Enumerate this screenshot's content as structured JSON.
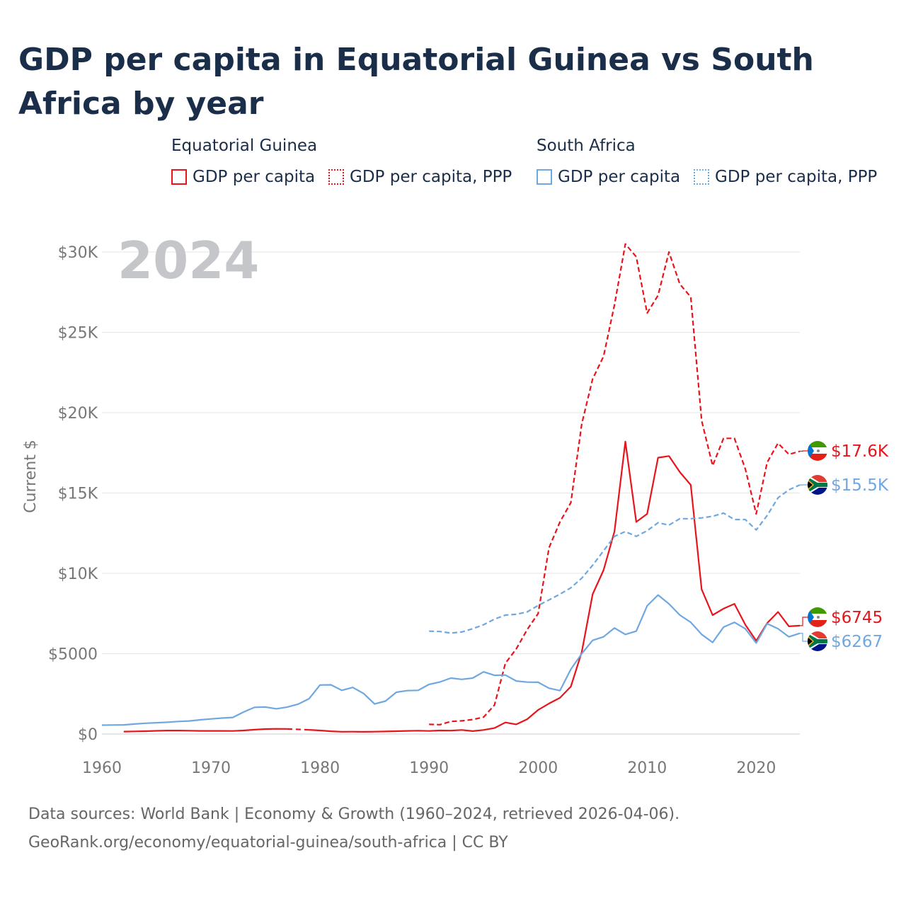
{
  "title": "GDP per capita in Equatorial Guinea vs South Africa by year",
  "legend": {
    "groups": [
      {
        "name": "Equatorial Guinea",
        "items": [
          "GDP per capita",
          "GDP per capita, PPP"
        ]
      },
      {
        "name": "South Africa",
        "items": [
          "GDP per capita",
          "GDP per capita, PPP"
        ]
      }
    ]
  },
  "colors": {
    "gq": "#e8141c",
    "za": "#6fa8e0",
    "title": "#1a2e4a",
    "year_label": "#c4c6c9",
    "grid": "#e6e6e6"
  },
  "chart_data": {
    "type": "line",
    "title": "GDP per capita in Equatorial Guinea vs South Africa by year",
    "xlabel": "",
    "ylabel": "Current $",
    "xlim": [
      1960,
      2024
    ],
    "ylim": [
      0,
      30000
    ],
    "x_ticks": [
      1960,
      1970,
      1980,
      1990,
      2000,
      2010,
      2020
    ],
    "x_tick_labels": [
      "1960",
      "1970",
      "1980",
      "1990",
      "2000",
      "2010",
      "2020"
    ],
    "y_ticks": [
      0,
      5000,
      10000,
      15000,
      20000,
      25000,
      30000
    ],
    "y_tick_labels": [
      "$0",
      "$5000",
      "$10K",
      "$15K",
      "$20K",
      "$25K",
      "$30K"
    ],
    "year_label": "2024",
    "end_labels": {
      "gq_gdp": "$6745",
      "gq_ppp": "$17.6K",
      "za_gdp": "$6267",
      "za_ppp": "$15.5K"
    },
    "series": [
      {
        "name": "Equatorial Guinea GDP per capita",
        "country": "gq",
        "style": "solid",
        "points": [
          [
            1962,
            150
          ],
          [
            1963,
            165
          ],
          [
            1964,
            175
          ],
          [
            1965,
            200
          ],
          [
            1966,
            215
          ],
          [
            1967,
            215
          ],
          [
            1968,
            205
          ],
          [
            1969,
            195
          ],
          [
            1970,
            195
          ],
          [
            1971,
            195
          ],
          [
            1972,
            190
          ],
          [
            1973,
            220
          ],
          [
            1974,
            270
          ],
          [
            1975,
            310
          ],
          [
            1976,
            320
          ],
          [
            1977,
            315
          ],
          [
            1978,
            null
          ],
          [
            1979,
            260
          ],
          [
            1980,
            220
          ],
          [
            1981,
            170
          ],
          [
            1982,
            140
          ],
          [
            1983,
            145
          ],
          [
            1984,
            135
          ],
          [
            1985,
            145
          ],
          [
            1986,
            160
          ],
          [
            1987,
            175
          ],
          [
            1988,
            195
          ],
          [
            1989,
            205
          ],
          [
            1990,
            190
          ],
          [
            1991,
            220
          ],
          [
            1992,
            210
          ],
          [
            1993,
            250
          ],
          [
            1994,
            180
          ],
          [
            1995,
            250
          ],
          [
            1996,
            370
          ],
          [
            1997,
            720
          ],
          [
            1998,
            600
          ],
          [
            1999,
            920
          ],
          [
            2000,
            1500
          ],
          [
            2001,
            1900
          ],
          [
            2002,
            2250
          ],
          [
            2003,
            2950
          ],
          [
            2004,
            5100
          ],
          [
            2005,
            8700
          ],
          [
            2006,
            10200
          ],
          [
            2007,
            12600
          ],
          [
            2008,
            18200
          ],
          [
            2009,
            13200
          ],
          [
            2010,
            13700
          ],
          [
            2011,
            17200
          ],
          [
            2012,
            17300
          ],
          [
            2013,
            16300
          ],
          [
            2014,
            15500
          ],
          [
            2015,
            9000
          ],
          [
            2016,
            7400
          ],
          [
            2017,
            7800
          ],
          [
            2018,
            8100
          ],
          [
            2019,
            6800
          ],
          [
            2020,
            5800
          ],
          [
            2021,
            6900
          ],
          [
            2022,
            7600
          ],
          [
            2023,
            6700
          ],
          [
            2024,
            6745
          ]
        ]
      },
      {
        "name": "Equatorial Guinea GDP per capita, PPP",
        "country": "gq",
        "style": "dashed",
        "points": [
          [
            1990,
            600
          ],
          [
            1991,
            580
          ],
          [
            1992,
            780
          ],
          [
            1993,
            820
          ],
          [
            1994,
            900
          ],
          [
            1995,
            1050
          ],
          [
            1996,
            1800
          ],
          [
            1997,
            4400
          ],
          [
            1998,
            5300
          ],
          [
            1999,
            6500
          ],
          [
            2000,
            7500
          ],
          [
            2001,
            11600
          ],
          [
            2002,
            13200
          ],
          [
            2003,
            14400
          ],
          [
            2004,
            19300
          ],
          [
            2005,
            22100
          ],
          [
            2006,
            23500
          ],
          [
            2007,
            26700
          ],
          [
            2008,
            30500
          ],
          [
            2009,
            29700
          ],
          [
            2010,
            26200
          ],
          [
            2011,
            27300
          ],
          [
            2012,
            30000
          ],
          [
            2013,
            28000
          ],
          [
            2014,
            27200
          ],
          [
            2015,
            19500
          ],
          [
            2016,
            16700
          ],
          [
            2017,
            18400
          ],
          [
            2018,
            18400
          ],
          [
            2019,
            16500
          ],
          [
            2020,
            13700
          ],
          [
            2021,
            16900
          ],
          [
            2022,
            18100
          ],
          [
            2023,
            17400
          ],
          [
            2024,
            17600
          ]
        ]
      },
      {
        "name": "South Africa GDP per capita",
        "country": "za",
        "style": "solid",
        "points": [
          [
            1960,
            550
          ],
          [
            1961,
            560
          ],
          [
            1962,
            570
          ],
          [
            1963,
            620
          ],
          [
            1964,
            670
          ],
          [
            1965,
            700
          ],
          [
            1966,
            730
          ],
          [
            1967,
            780
          ],
          [
            1968,
            810
          ],
          [
            1969,
            880
          ],
          [
            1970,
            940
          ],
          [
            1971,
            990
          ],
          [
            1972,
            1030
          ],
          [
            1973,
            1370
          ],
          [
            1974,
            1660
          ],
          [
            1975,
            1680
          ],
          [
            1976,
            1570
          ],
          [
            1977,
            1680
          ],
          [
            1978,
            1860
          ],
          [
            1979,
            2200
          ],
          [
            1980,
            3050
          ],
          [
            1981,
            3060
          ],
          [
            1982,
            2720
          ],
          [
            1983,
            2900
          ],
          [
            1984,
            2520
          ],
          [
            1985,
            1870
          ],
          [
            1986,
            2050
          ],
          [
            1987,
            2600
          ],
          [
            1988,
            2700
          ],
          [
            1989,
            2720
          ],
          [
            1990,
            3090
          ],
          [
            1991,
            3240
          ],
          [
            1992,
            3480
          ],
          [
            1993,
            3400
          ],
          [
            1994,
            3480
          ],
          [
            1995,
            3870
          ],
          [
            1996,
            3650
          ],
          [
            1997,
            3670
          ],
          [
            1998,
            3300
          ],
          [
            1999,
            3230
          ],
          [
            2000,
            3220
          ],
          [
            2001,
            2850
          ],
          [
            2002,
            2700
          ],
          [
            2003,
            4030
          ],
          [
            2004,
            5000
          ],
          [
            2005,
            5830
          ],
          [
            2006,
            6050
          ],
          [
            2007,
            6600
          ],
          [
            2008,
            6200
          ],
          [
            2009,
            6400
          ],
          [
            2010,
            7980
          ],
          [
            2011,
            8650
          ],
          [
            2012,
            8100
          ],
          [
            2013,
            7400
          ],
          [
            2014,
            6950
          ],
          [
            2015,
            6200
          ],
          [
            2016,
            5700
          ],
          [
            2017,
            6650
          ],
          [
            2018,
            6950
          ],
          [
            2019,
            6550
          ],
          [
            2020,
            5660
          ],
          [
            2021,
            6870
          ],
          [
            2022,
            6550
          ],
          [
            2023,
            6050
          ],
          [
            2024,
            6267
          ]
        ]
      },
      {
        "name": "South Africa GDP per capita, PPP",
        "country": "za",
        "style": "dashed",
        "points": [
          [
            1990,
            6400
          ],
          [
            1991,
            6380
          ],
          [
            1992,
            6280
          ],
          [
            1993,
            6350
          ],
          [
            1994,
            6550
          ],
          [
            1995,
            6800
          ],
          [
            1996,
            7150
          ],
          [
            1997,
            7400
          ],
          [
            1998,
            7450
          ],
          [
            1999,
            7600
          ],
          [
            2000,
            8000
          ],
          [
            2001,
            8350
          ],
          [
            2002,
            8700
          ],
          [
            2003,
            9100
          ],
          [
            2004,
            9700
          ],
          [
            2005,
            10500
          ],
          [
            2006,
            11400
          ],
          [
            2007,
            12300
          ],
          [
            2008,
            12600
          ],
          [
            2009,
            12300
          ],
          [
            2010,
            12650
          ],
          [
            2011,
            13150
          ],
          [
            2012,
            13000
          ],
          [
            2013,
            13400
          ],
          [
            2014,
            13400
          ],
          [
            2015,
            13450
          ],
          [
            2016,
            13550
          ],
          [
            2017,
            13750
          ],
          [
            2018,
            13350
          ],
          [
            2019,
            13350
          ],
          [
            2020,
            12700
          ],
          [
            2021,
            13600
          ],
          [
            2022,
            14700
          ],
          [
            2023,
            15200
          ],
          [
            2024,
            15500
          ]
        ]
      }
    ]
  },
  "source": {
    "line1": "Data sources: World Bank | Economy & Growth (1960–2024, retrieved 2026-04-06).",
    "line2": "GeoRank.org/economy/equatorial-guinea/south-africa | CC BY"
  }
}
